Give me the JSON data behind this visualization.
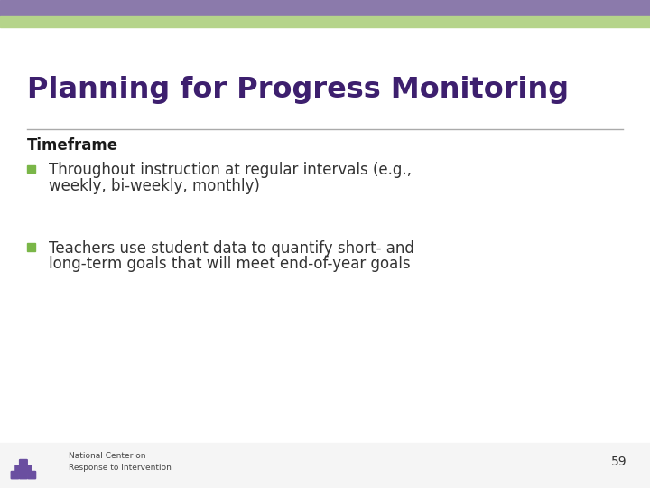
{
  "title": "Planning for Progress Monitoring",
  "title_color": "#3d1f6e",
  "subtitle": "Timeframe",
  "subtitle_color": "#1a1a1a",
  "bullet_color": "#7ab648",
  "bullet1_line1": "Throughout instruction at regular intervals (e.g.,",
  "bullet1_line2": "weekly, bi-weekly, monthly)",
  "bullet2_line1": "Teachers use student data to quantify short- and",
  "bullet2_line2": "long-term goals that will meet end-of-year goals",
  "text_color": "#333333",
  "top_bar_color": "#8b7aab",
  "green_bar_color": "#b5d48a",
  "footer_bg_color": "#f5f5f5",
  "divider_color": "#aaaaaa",
  "footer_text1": "National Center on",
  "footer_text2": "Response to Intervention",
  "page_number": "59",
  "background_color": "#ffffff"
}
